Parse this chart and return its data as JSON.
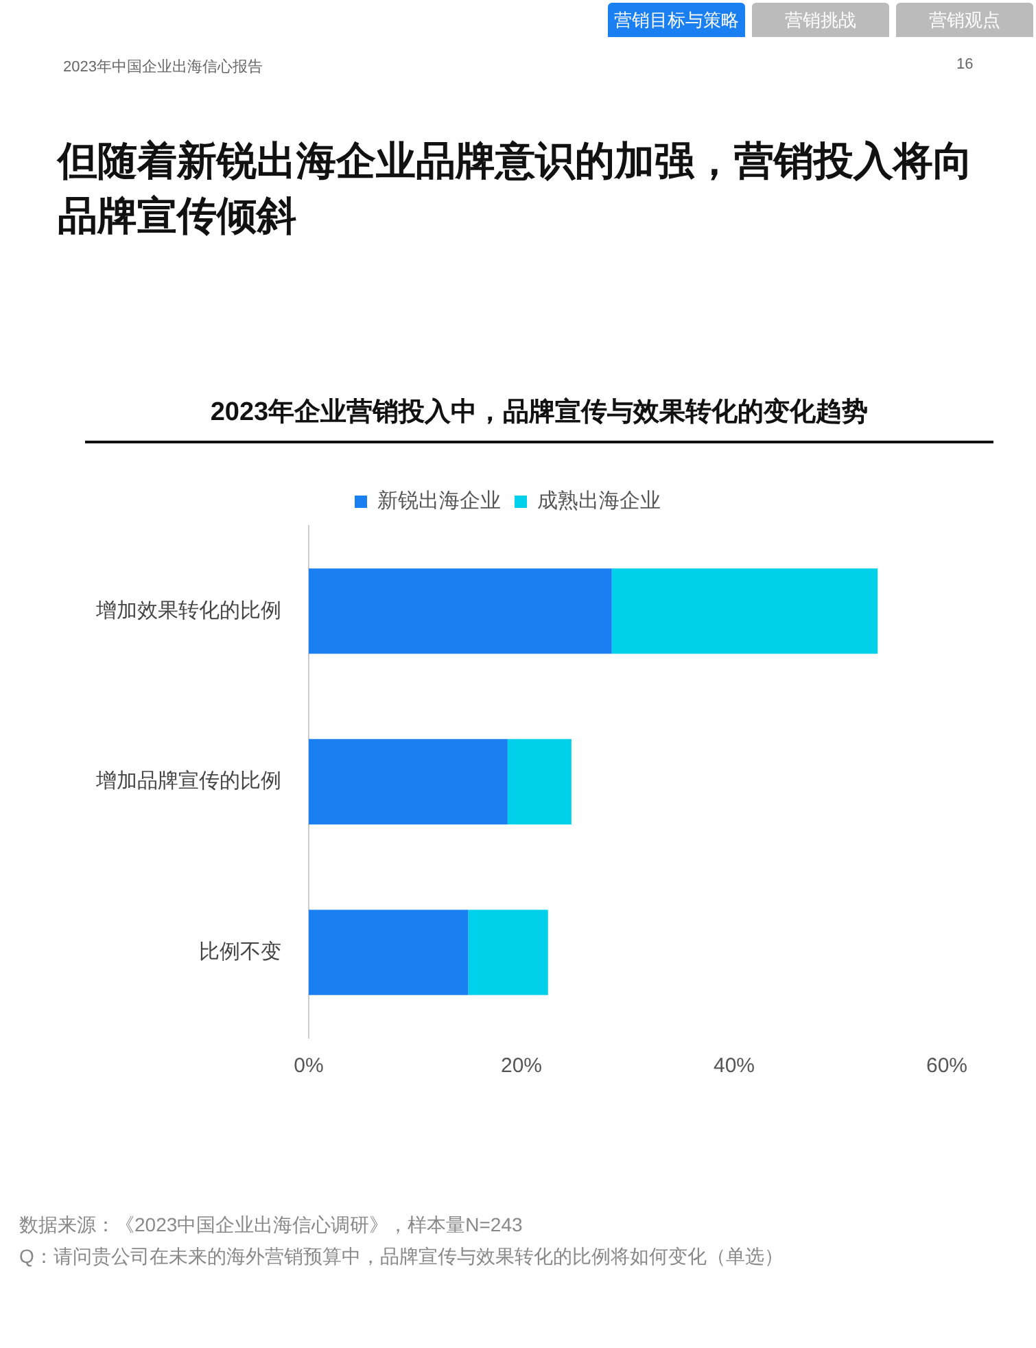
{
  "chart_data": {
    "type": "bar",
    "orientation": "horizontal",
    "stacked": true,
    "title": "2023年企业营销投入中，品牌宣传与效果转化的变化趋势",
    "subtitle": "但随着新锐出海企业品牌意识的加强，营销投入将向品牌宣传倾斜",
    "categories": [
      "增加效果转化的比例",
      "增加品牌宣传的比例",
      "比例不变"
    ],
    "series": [
      {
        "name": "新锐出海企业",
        "color": "#1a7ff0",
        "values": [
          28.5,
          18.7,
          15
        ]
      },
      {
        "name": "成熟出海企业",
        "color": "#00d0ea",
        "values": [
          25,
          6,
          7.5
        ]
      }
    ],
    "xlim": [
      0,
      60
    ],
    "xticks": [
      {
        "value": 0,
        "label": "0%"
      },
      {
        "value": 20,
        "label": "20%"
      },
      {
        "value": 40,
        "label": "40%"
      },
      {
        "value": 60,
        "label": "60%"
      }
    ],
    "grid": false,
    "legend": "top",
    "annotations": [
      "2023年中国企业出海信心报告",
      "16",
      "营销目标与策略",
      "营销挑战",
      "营销观点",
      "数据来源：《2023中国企业出海信心调研》，样本量N=243",
      "Q：请问贵公司在未来的海外营销预算中，品牌宣传与效果转化的比例将如何变化（单选）"
    ]
  }
}
